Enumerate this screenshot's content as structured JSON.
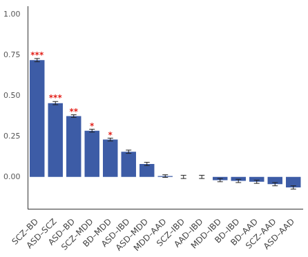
{
  "chart_data": {
    "type": "bar",
    "categories": [
      "SCZ–BD",
      "ASD–SCZ",
      "ASD–BD",
      "SCZ–MDD",
      "BD–MDD",
      "ASD–IBD",
      "ASD–MDD",
      "MDD–AAD",
      "SCZ–IBD",
      "AAD–IBD",
      "MDD–IBD",
      "BD–IBD",
      "BD–AAD",
      "SCZ–AAD",
      "ASD–AAD"
    ],
    "values": [
      0.72,
      0.455,
      0.375,
      0.285,
      0.23,
      0.155,
      0.08,
      0.005,
      0.0,
      0.0,
      -0.02,
      -0.025,
      -0.03,
      -0.045,
      -0.065
    ],
    "errors": [
      0.01,
      0.01,
      0.008,
      0.009,
      0.009,
      0.01,
      0.01,
      0.008,
      0.01,
      0.01,
      0.01,
      0.01,
      0.01,
      0.01,
      0.01
    ],
    "annotations": [
      {
        "category": "SCZ–BD",
        "text": "***"
      },
      {
        "category": "ASD–SCZ",
        "text": "***"
      },
      {
        "category": "ASD–BD",
        "text": "**"
      },
      {
        "category": "SCZ–MDD",
        "text": "*"
      },
      {
        "category": "BD–MDD",
        "text": "*"
      }
    ],
    "color": "#3d5ca6",
    "ylim": [
      -0.2,
      1.05
    ],
    "yticks": [
      {
        "value": 0,
        "label": "0.00"
      },
      {
        "value": 0.25,
        "label": "0.25"
      },
      {
        "value": 0.5,
        "label": "0.50"
      },
      {
        "value": 0.75,
        "label": "0.75"
      },
      {
        "value": 1,
        "label": "1.00"
      }
    ],
    "grid": false
  }
}
